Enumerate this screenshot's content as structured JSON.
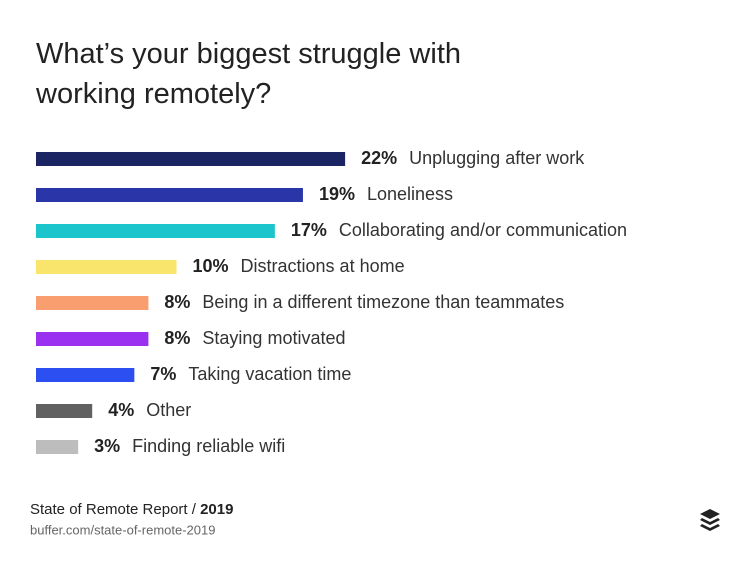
{
  "chart_data": {
    "type": "bar",
    "orientation": "horizontal",
    "title": "What’s your biggest struggle with working remotely?",
    "categories": [
      "Unplugging after work",
      "Loneliness",
      "Collaborating and/or communication",
      "Distractions at home",
      "Being in a different timezone than teammates",
      "Staying motivated",
      "Taking vacation time",
      "Other",
      "Finding reliable wifi"
    ],
    "values": [
      22,
      19,
      17,
      10,
      8,
      8,
      7,
      4,
      3
    ],
    "value_labels": [
      "22%",
      "19%",
      "17%",
      "10%",
      "8%",
      "8%",
      "7%",
      "4%",
      "3%"
    ],
    "colors": [
      "#1b2563",
      "#2a36a8",
      "#1cc4cb",
      "#f9e46c",
      "#f99e6e",
      "#9a30f0",
      "#2b4ff0",
      "#616161",
      "#bdbdbd"
    ],
    "source": "State of Remote Report /",
    "source_year": "2019",
    "url": "buffer.com/state-of-remote-2019"
  }
}
